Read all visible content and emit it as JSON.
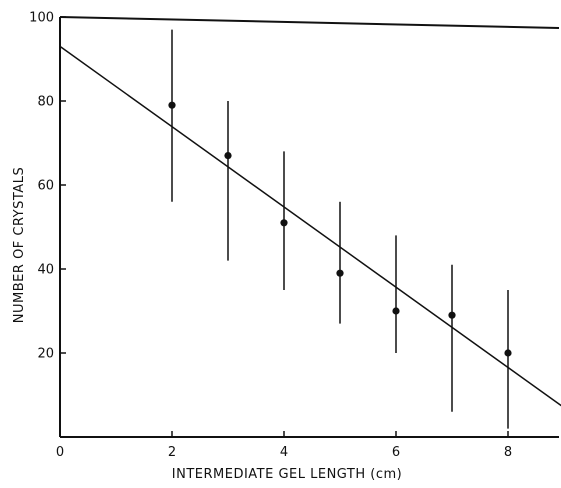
{
  "chart_data": {
    "type": "scatter",
    "title": "",
    "xlabel": "INTERMEDIATE GEL LENGTH (cm)",
    "ylabel": "NUMBER OF CRYSTALS",
    "xlim": [
      0,
      9
    ],
    "ylim": [
      0,
      100
    ],
    "x_ticks": [
      0,
      2,
      4,
      6,
      8
    ],
    "x_tick_labels": [
      "0",
      "2",
      "4",
      "6",
      "8"
    ],
    "y_ticks": [
      20,
      40,
      60,
      80,
      100
    ],
    "y_tick_labels": [
      "20",
      "40",
      "60",
      "80",
      "100"
    ],
    "grid": false,
    "series": [
      {
        "points": [
          {
            "x": 2,
            "y": 79,
            "ymin": 56,
            "ymax": 97
          },
          {
            "x": 3,
            "y": 67,
            "ymin": 42,
            "ymax": 80
          },
          {
            "x": 4,
            "y": 51,
            "ymin": 35,
            "ymax": 68
          },
          {
            "x": 5,
            "y": 39,
            "ymin": 27,
            "ymax": 56
          },
          {
            "x": 6,
            "y": 30,
            "ymin": 20,
            "ymax": 48
          },
          {
            "x": 7,
            "y": 29,
            "ymin": 6,
            "ymax": 41
          },
          {
            "x": 8,
            "y": 20,
            "ymin": 2,
            "ymax": 35
          }
        ],
        "fit_line": {
          "x": [
            0,
            9
          ],
          "y": [
            93,
            7
          ]
        }
      }
    ]
  }
}
